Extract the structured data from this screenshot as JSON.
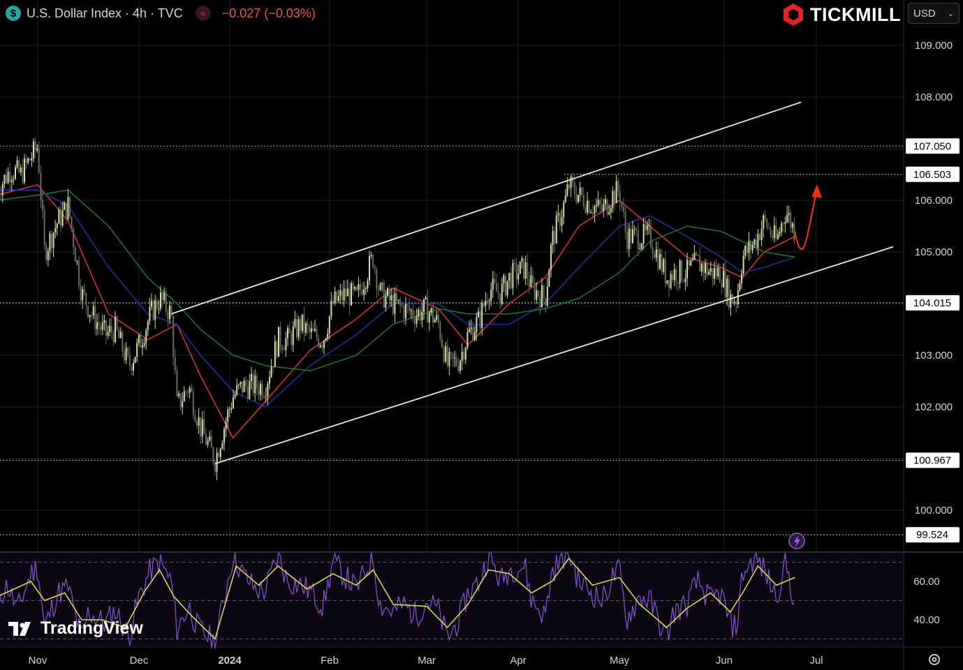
{
  "header": {
    "currency_badge": "$",
    "symbol_title": "U.S. Dollar Index · 4h · TVC",
    "indicator_badge": "≈",
    "change": "−0.027 (−0.03%)",
    "change_color": "#f0544f"
  },
  "brand": {
    "name": "TICKMILL",
    "logo_icon": "tickmill-hexagon-icon",
    "color": "#e4202b"
  },
  "currency_select": {
    "value": "USD"
  },
  "watermark": {
    "text": "TradingView"
  },
  "icons": [
    "usd-coin-icon",
    "wave-icon",
    "lightning-icon",
    "settings-icon",
    "chevron-down-icon"
  ],
  "chart_data": [
    {
      "type": "candlestick",
      "title": "U.S. Dollar Index · 4h · TVC",
      "x_ticks": [
        "Nov",
        "Dec",
        "2024",
        "Feb",
        "Mar",
        "Apr",
        "May",
        "Jun",
        "Jul"
      ],
      "y_ticks": [
        "100.000",
        "101.000",
        "102.000",
        "103.000",
        "104.000",
        "105.000",
        "106.000",
        "107.000",
        "108.000",
        "109.000"
      ],
      "y_tick_labels": [
        "100.000",
        "102.000",
        "103.000",
        "105.000",
        "106.000",
        "108.000",
        "109.000"
      ],
      "ylim": [
        99.1,
        109.9
      ],
      "price_levels": [
        {
          "value": 107.05,
          "label": "107.050"
        },
        {
          "value": 106.503,
          "label": "106.503"
        },
        {
          "value": 104.015,
          "label": "104.015"
        },
        {
          "value": 100.967,
          "label": "100.967"
        },
        {
          "value": 99.524,
          "label": "99.524"
        }
      ],
      "price_path": [
        [
          "2023-10-20",
          106.2
        ],
        [
          "2023-10-24",
          106.6
        ],
        [
          "2023-10-27",
          106.5
        ],
        [
          "2023-11-01",
          107.05
        ],
        [
          "2023-11-03",
          105.0
        ],
        [
          "2023-11-07",
          105.6
        ],
        [
          "2023-11-10",
          105.9
        ],
        [
          "2023-11-14",
          104.2
        ],
        [
          "2023-11-17",
          103.8
        ],
        [
          "2023-11-21",
          103.4
        ],
        [
          "2023-11-24",
          103.5
        ],
        [
          "2023-11-28",
          102.8
        ],
        [
          "2023-12-01",
          103.2
        ],
        [
          "2023-12-05",
          103.8
        ],
        [
          "2023-12-08",
          104.1
        ],
        [
          "2023-12-12",
          103.8
        ],
        [
          "2023-12-14",
          102.0
        ],
        [
          "2023-12-18",
          102.4
        ],
        [
          "2023-12-22",
          101.6
        ],
        [
          "2023-12-27",
          100.967
        ],
        [
          "2023-12-29",
          101.4
        ],
        [
          "2024-01-02",
          102.2
        ],
        [
          "2024-01-05",
          102.4
        ],
        [
          "2024-01-09",
          102.4
        ],
        [
          "2024-01-12",
          102.4
        ],
        [
          "2024-01-16",
          103.3
        ],
        [
          "2024-01-19",
          103.3
        ],
        [
          "2024-01-23",
          103.6
        ],
        [
          "2024-01-26",
          103.4
        ],
        [
          "2024-01-30",
          103.3
        ],
        [
          "2024-02-02",
          104.0
        ],
        [
          "2024-02-06",
          104.2
        ],
        [
          "2024-02-09",
          104.1
        ],
        [
          "2024-02-14",
          104.9
        ],
        [
          "2024-02-16",
          104.2
        ],
        [
          "2024-02-20",
          104.0
        ],
        [
          "2024-02-23",
          103.9
        ],
        [
          "2024-02-27",
          103.8
        ],
        [
          "2024-03-01",
          103.9
        ],
        [
          "2024-03-05",
          103.6
        ],
        [
          "2024-03-08",
          102.8
        ],
        [
          "2024-03-12",
          102.9
        ],
        [
          "2024-03-15",
          103.4
        ],
        [
          "2024-03-19",
          103.7
        ],
        [
          "2024-03-22",
          104.3
        ],
        [
          "2024-03-26",
          104.2
        ],
        [
          "2024-03-29",
          104.5
        ],
        [
          "2024-04-03",
          104.7
        ],
        [
          "2024-04-05",
          104.3
        ],
        [
          "2024-04-09",
          104.1
        ],
        [
          "2024-04-11",
          105.2
        ],
        [
          "2024-04-15",
          106.0
        ],
        [
          "2024-04-16",
          106.3
        ],
        [
          "2024-04-19",
          106.1
        ],
        [
          "2024-04-23",
          105.9
        ],
        [
          "2024-04-26",
          105.8
        ],
        [
          "2024-04-29",
          106.1
        ],
        [
          "2024-05-01",
          106.2
        ],
        [
          "2024-05-03",
          105.3
        ],
        [
          "2024-05-07",
          105.3
        ],
        [
          "2024-05-10",
          105.3
        ],
        [
          "2024-05-15",
          104.5
        ],
        [
          "2024-05-17",
          104.6
        ],
        [
          "2024-05-21",
          104.6
        ],
        [
          "2024-05-24",
          104.8
        ],
        [
          "2024-05-28",
          104.6
        ],
        [
          "2024-05-31",
          104.6
        ],
        [
          "2024-06-03",
          104.1
        ],
        [
          "2024-06-05",
          104.1
        ],
        [
          "2024-06-07",
          104.9
        ],
        [
          "2024-06-11",
          105.2
        ],
        [
          "2024-06-14",
          105.6
        ],
        [
          "2024-06-18",
          105.2
        ],
        [
          "2024-06-21",
          105.8
        ],
        [
          "2024-06-24",
          105.4
        ]
      ],
      "moving_averages": [
        {
          "color": "#e0333a",
          "points": [
            [
              "2023-10-20",
              106.1
            ],
            [
              "2023-11-01",
              106.3
            ],
            [
              "2023-11-10",
              105.6
            ],
            [
              "2023-11-22",
              103.8
            ],
            [
              "2023-12-04",
              103.3
            ],
            [
              "2023-12-14",
              103.6
            ],
            [
              "2023-12-22",
              102.6
            ],
            [
              "2024-01-02",
              101.4
            ],
            [
              "2024-01-12",
              102.1
            ],
            [
              "2024-01-26",
              103.1
            ],
            [
              "2024-02-09",
              103.7
            ],
            [
              "2024-02-20",
              104.3
            ],
            [
              "2024-03-05",
              103.9
            ],
            [
              "2024-03-15",
              103.2
            ],
            [
              "2024-03-29",
              104.0
            ],
            [
              "2024-04-09",
              104.5
            ],
            [
              "2024-04-19",
              105.5
            ],
            [
              "2024-05-01",
              106.0
            ],
            [
              "2024-05-10",
              105.5
            ],
            [
              "2024-05-21",
              104.9
            ],
            [
              "2024-05-31",
              104.7
            ],
            [
              "2024-06-07",
              104.5
            ],
            [
              "2024-06-14",
              105.0
            ],
            [
              "2024-06-24",
              105.3
            ]
          ]
        },
        {
          "color": "#2430a8",
          "points": [
            [
              "2023-10-20",
              106.2
            ],
            [
              "2023-11-01",
              106.2
            ],
            [
              "2023-11-10",
              105.9
            ],
            [
              "2023-11-22",
              104.7
            ],
            [
              "2023-12-04",
              103.8
            ],
            [
              "2023-12-14",
              103.6
            ],
            [
              "2023-12-22",
              103.0
            ],
            [
              "2024-01-02",
              102.3
            ],
            [
              "2024-01-12",
              102.0
            ],
            [
              "2024-01-26",
              102.8
            ],
            [
              "2024-02-09",
              103.4
            ],
            [
              "2024-02-20",
              104.0
            ],
            [
              "2024-03-05",
              104.0
            ],
            [
              "2024-03-15",
              103.6
            ],
            [
              "2024-03-29",
              103.6
            ],
            [
              "2024-04-09",
              104.0
            ],
            [
              "2024-04-19",
              104.7
            ],
            [
              "2024-05-01",
              105.5
            ],
            [
              "2024-05-10",
              105.7
            ],
            [
              "2024-05-21",
              105.3
            ],
            [
              "2024-05-31",
              104.9
            ],
            [
              "2024-06-07",
              104.6
            ],
            [
              "2024-06-14",
              104.7
            ],
            [
              "2024-06-24",
              104.9
            ]
          ]
        },
        {
          "color": "#1f7a2c",
          "points": [
            [
              "2023-10-20",
              106.0
            ],
            [
              "2023-11-01",
              106.1
            ],
            [
              "2023-11-10",
              106.2
            ],
            [
              "2023-11-22",
              105.5
            ],
            [
              "2023-12-04",
              104.5
            ],
            [
              "2023-12-14",
              104.0
            ],
            [
              "2023-12-22",
              103.5
            ],
            [
              "2024-01-02",
              103.0
            ],
            [
              "2024-01-12",
              102.8
            ],
            [
              "2024-01-26",
              102.7
            ],
            [
              "2024-02-09",
              103.0
            ],
            [
              "2024-02-20",
              103.6
            ],
            [
              "2024-03-05",
              103.9
            ],
            [
              "2024-03-15",
              103.8
            ],
            [
              "2024-03-29",
              103.8
            ],
            [
              "2024-04-09",
              103.9
            ],
            [
              "2024-04-19",
              104.1
            ],
            [
              "2024-05-01",
              104.6
            ],
            [
              "2024-05-10",
              105.2
            ],
            [
              "2024-05-21",
              105.5
            ],
            [
              "2024-05-31",
              105.4
            ],
            [
              "2024-06-07",
              105.2
            ],
            [
              "2024-06-14",
              105.0
            ],
            [
              "2024-06-24",
              104.9
            ]
          ]
        }
      ],
      "channel_lines": [
        {
          "points": [
            [
              "2023-12-12",
              103.8
            ],
            [
              "2024-06-26",
              107.9
            ]
          ],
          "color": "#e8e8e8"
        },
        {
          "points": [
            [
              "2023-12-27",
              100.9
            ],
            [
              "2024-07-26",
              105.1
            ]
          ],
          "color": "#e8e8e8"
        }
      ],
      "projection_arrow": {
        "color": "#e8321e",
        "points": [
          [
            "2024-06-24",
            105.4
          ],
          [
            "2024-06-26",
            105.1
          ],
          [
            "2024-06-28",
            105.3
          ],
          [
            "2024-07-01",
            106.2
          ]
        ]
      }
    },
    {
      "type": "line",
      "y_ticks": [
        "40.00",
        "60.00"
      ],
      "ylim": [
        24,
        76
      ],
      "reference_levels": [
        30,
        50,
        70
      ],
      "rsi_color": "#8a55d4",
      "signal_color": "#d8d84a",
      "rsi_path": [
        [
          "2023-10-20",
          50
        ],
        [
          "2023-10-23",
          58
        ],
        [
          "2023-10-26",
          45
        ],
        [
          "2023-10-30",
          64
        ],
        [
          "2023-11-01",
          68
        ],
        [
          "2023-11-03",
          36
        ],
        [
          "2023-11-07",
          54
        ],
        [
          "2023-11-10",
          57
        ],
        [
          "2023-11-14",
          30
        ],
        [
          "2023-11-16",
          44
        ],
        [
          "2023-11-21",
          38
        ],
        [
          "2023-11-24",
          45
        ],
        [
          "2023-11-28",
          31
        ],
        [
          "2023-12-01",
          52
        ],
        [
          "2023-12-05",
          66
        ],
        [
          "2023-12-08",
          70
        ],
        [
          "2023-12-12",
          60
        ],
        [
          "2023-12-14",
          35
        ],
        [
          "2023-12-18",
          47
        ],
        [
          "2023-12-21",
          36
        ],
        [
          "2023-12-27",
          28
        ],
        [
          "2024-01-02",
          74
        ],
        [
          "2024-01-05",
          64
        ],
        [
          "2024-01-09",
          56
        ],
        [
          "2024-01-12",
          55
        ],
        [
          "2024-01-16",
          74
        ],
        [
          "2024-01-19",
          60
        ],
        [
          "2024-01-23",
          58
        ],
        [
          "2024-01-26",
          55
        ],
        [
          "2024-01-30",
          47
        ],
        [
          "2024-02-02",
          70
        ],
        [
          "2024-02-06",
          62
        ],
        [
          "2024-02-09",
          56
        ],
        [
          "2024-02-14",
          73
        ],
        [
          "2024-02-16",
          48
        ],
        [
          "2024-02-20",
          44
        ],
        [
          "2024-02-23",
          48
        ],
        [
          "2024-02-27",
          42
        ],
        [
          "2024-03-01",
          50
        ],
        [
          "2024-03-05",
          45
        ],
        [
          "2024-03-08",
          30
        ],
        [
          "2024-03-12",
          40
        ],
        [
          "2024-03-15",
          54
        ],
        [
          "2024-03-19",
          60
        ],
        [
          "2024-03-22",
          74
        ],
        [
          "2024-03-26",
          60
        ],
        [
          "2024-03-29",
          66
        ],
        [
          "2024-04-03",
          68
        ],
        [
          "2024-04-05",
          50
        ],
        [
          "2024-04-09",
          42
        ],
        [
          "2024-04-11",
          65
        ],
        [
          "2024-04-15",
          74
        ],
        [
          "2024-04-16",
          75
        ],
        [
          "2024-04-19",
          60
        ],
        [
          "2024-04-23",
          54
        ],
        [
          "2024-04-26",
          50
        ],
        [
          "2024-04-29",
          62
        ],
        [
          "2024-05-01",
          66
        ],
        [
          "2024-05-03",
          40
        ],
        [
          "2024-05-07",
          52
        ],
        [
          "2024-05-10",
          50
        ],
        [
          "2024-05-15",
          30
        ],
        [
          "2024-05-17",
          44
        ],
        [
          "2024-05-21",
          48
        ],
        [
          "2024-05-24",
          60
        ],
        [
          "2024-05-28",
          50
        ],
        [
          "2024-05-31",
          54
        ],
        [
          "2024-06-03",
          38
        ],
        [
          "2024-06-05",
          36
        ],
        [
          "2024-06-07",
          64
        ],
        [
          "2024-06-11",
          72
        ],
        [
          "2024-06-14",
          66
        ],
        [
          "2024-06-18",
          52
        ],
        [
          "2024-06-21",
          70
        ],
        [
          "2024-06-24",
          48
        ]
      ],
      "signal_path": [
        [
          "2023-10-20",
          52
        ],
        [
          "2023-10-25",
          56
        ],
        [
          "2023-10-30",
          60
        ],
        [
          "2023-11-03",
          50
        ],
        [
          "2023-11-09",
          54
        ],
        [
          "2023-11-14",
          40
        ],
        [
          "2023-11-20",
          40
        ],
        [
          "2023-11-27",
          36
        ],
        [
          "2023-12-03",
          55
        ],
        [
          "2023-12-08",
          66
        ],
        [
          "2023-12-13",
          52
        ],
        [
          "2023-12-19",
          42
        ],
        [
          "2023-12-27",
          30
        ],
        [
          "2024-01-03",
          68
        ],
        [
          "2024-01-10",
          58
        ],
        [
          "2024-01-16",
          68
        ],
        [
          "2024-01-25",
          56
        ],
        [
          "2024-02-02",
          64
        ],
        [
          "2024-02-09",
          58
        ],
        [
          "2024-02-14",
          66
        ],
        [
          "2024-02-20",
          48
        ],
        [
          "2024-03-01",
          47
        ],
        [
          "2024-03-08",
          36
        ],
        [
          "2024-03-15",
          48
        ],
        [
          "2024-03-22",
          66
        ],
        [
          "2024-03-29",
          64
        ],
        [
          "2024-04-05",
          54
        ],
        [
          "2024-04-11",
          60
        ],
        [
          "2024-04-16",
          72
        ],
        [
          "2024-04-23",
          58
        ],
        [
          "2024-05-01",
          62
        ],
        [
          "2024-05-07",
          48
        ],
        [
          "2024-05-15",
          36
        ],
        [
          "2024-05-21",
          46
        ],
        [
          "2024-05-28",
          54
        ],
        [
          "2024-06-03",
          44
        ],
        [
          "2024-06-07",
          54
        ],
        [
          "2024-06-12",
          68
        ],
        [
          "2024-06-18",
          58
        ],
        [
          "2024-06-24",
          62
        ]
      ]
    }
  ]
}
